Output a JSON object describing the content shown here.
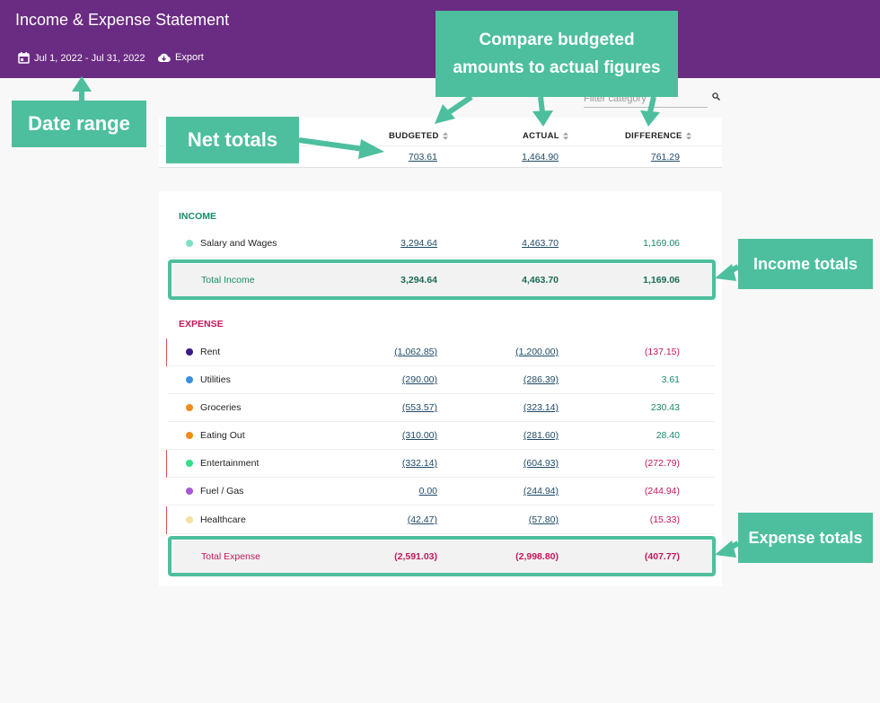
{
  "header": {
    "title": "Income & Expense Statement",
    "date_range": "Jul 1, 2022 - Jul 31, 2022",
    "export_label": "Export"
  },
  "filter": {
    "placeholder": "Filter category"
  },
  "columns": {
    "budgeted": "BUDGETED",
    "actual": "ACTUAL",
    "difference": "DIFFERENCE"
  },
  "net_totals": {
    "budgeted": "703.61",
    "actual": "1,464.90",
    "difference": "761.29"
  },
  "income": {
    "label": "INCOME",
    "rows": [
      {
        "name": "Salary and Wages",
        "budgeted": "3,294.64",
        "actual": "4,463.70",
        "difference": "1,169.06",
        "dot_color": "#7ee0c3"
      }
    ],
    "total": {
      "label": "Total Income",
      "budgeted": "3,294.64",
      "actual": "4,463.70",
      "difference": "1,169.06"
    }
  },
  "expense": {
    "label": "EXPENSE",
    "rows": [
      {
        "name": "Rent",
        "budgeted": "(1,062.85)",
        "actual": "(1,200.00)",
        "difference": "(137.15)",
        "dot_color": "#3a1d8a"
      },
      {
        "name": "Utilities",
        "budgeted": "(290.00)",
        "actual": "(286.39)",
        "difference": "3.61",
        "dot_color": "#3b8ee0"
      },
      {
        "name": "Groceries",
        "budgeted": "(553.57)",
        "actual": "(323.14)",
        "difference": "230.43",
        "dot_color": "#f08c1a"
      },
      {
        "name": "Eating Out",
        "budgeted": "(310.00)",
        "actual": "(281.60)",
        "difference": "28.40",
        "dot_color": "#f08c1a"
      },
      {
        "name": "Entertainment",
        "budgeted": "(332.14)",
        "actual": "(604.93)",
        "difference": "(272.79)",
        "dot_color": "#2ee08a"
      },
      {
        "name": "Fuel / Gas",
        "budgeted": "0.00",
        "actual": "(244.94)",
        "difference": "(244.94)",
        "dot_color": "#a857d6"
      },
      {
        "name": "Healthcare",
        "budgeted": "(42.47)",
        "actual": "(57.80)",
        "difference": "(15.33)",
        "dot_color": "#f2e3a0"
      }
    ],
    "total": {
      "label": "Total Expense",
      "budgeted": "(2,591.03)",
      "actual": "(2,998.80)",
      "difference": "(407.77)"
    }
  },
  "annotations": {
    "date_range": "Date range",
    "net_totals": "Net totals",
    "compare_line1": "Compare budgeted",
    "compare_line2": "amounts to actual figures",
    "income_totals": "Income totals",
    "expense_totals": "Expense totals"
  },
  "colors": {
    "header": "#6a2c82",
    "accent": "#4dbf9e",
    "income": "#1a8a6a",
    "expense": "#c2185b",
    "link": "#1e4a66"
  }
}
